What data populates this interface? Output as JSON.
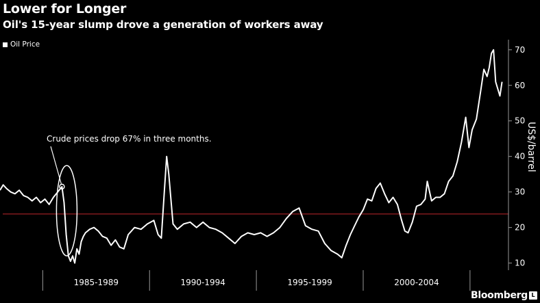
{
  "header": {
    "title": "Lower for Longer",
    "subtitle": "Oil's 15-year slump drove a generation of workers away"
  },
  "legend": {
    "label": "Oil Price"
  },
  "brand": {
    "name": "Bloomberg",
    "badge": "L"
  },
  "colors": {
    "background": "#000000",
    "line": "#ffffff",
    "reference": "#c0272d",
    "axis": "#999999"
  },
  "chart_data": {
    "type": "line",
    "title": "Lower for Longer",
    "subtitle": "Oil's 15-year slump drove a generation of workers away",
    "ylabel": "US$/barrel",
    "xlabel": "",
    "x_tick_labels": [
      "1985-1989",
      "1990-1994",
      "1995-1999",
      "2000-2004"
    ],
    "xlim": [
      1983.0,
      2006.8
    ],
    "ylim": [
      8,
      74
    ],
    "y_ticks": [
      10,
      20,
      30,
      40,
      50,
      60,
      70
    ],
    "y_axis_side": "right",
    "reference_line": 23.8,
    "grid": false,
    "legend_position": "top-left",
    "annotation": {
      "text": "Crude prices drop 67% in three months.",
      "x": 1985.9,
      "y": 31.5
    },
    "series": [
      {
        "name": "Oil Price",
        "x": [
          1983.0,
          1983.15,
          1983.3,
          1983.5,
          1983.7,
          1983.9,
          1984.1,
          1984.3,
          1984.5,
          1984.7,
          1984.9,
          1985.1,
          1985.3,
          1985.5,
          1985.7,
          1985.9,
          1986.0,
          1986.1,
          1986.2,
          1986.3,
          1986.4,
          1986.5,
          1986.6,
          1986.7,
          1986.8,
          1986.9,
          1987.0,
          1987.2,
          1987.4,
          1987.6,
          1987.8,
          1988.0,
          1988.2,
          1988.4,
          1988.6,
          1988.8,
          1989.0,
          1989.3,
          1989.6,
          1989.9,
          1990.2,
          1990.4,
          1990.55,
          1990.7,
          1990.8,
          1990.9,
          1991.0,
          1991.1,
          1991.3,
          1991.6,
          1991.9,
          1992.2,
          1992.5,
          1992.8,
          1993.1,
          1993.4,
          1993.7,
          1994.0,
          1994.3,
          1994.6,
          1994.9,
          1995.2,
          1995.5,
          1995.8,
          1996.1,
          1996.4,
          1996.7,
          1997.0,
          1997.3,
          1997.6,
          1997.9,
          1998.2,
          1998.5,
          1998.8,
          1999.0,
          1999.2,
          1999.4,
          1999.6,
          1999.8,
          2000.0,
          2000.2,
          2000.4,
          2000.6,
          2000.8,
          2001.0,
          2001.2,
          2001.4,
          2001.6,
          2001.8,
          2001.95,
          2002.1,
          2002.3,
          2002.5,
          2002.7,
          2002.9,
          2003.0,
          2003.2,
          2003.4,
          2003.6,
          2003.8,
          2004.0,
          2004.2,
          2004.4,
          2004.6,
          2004.8,
          2004.95,
          2005.1,
          2005.3,
          2005.5,
          2005.65,
          2005.8,
          2005.9,
          2006.0,
          2006.1,
          2006.2,
          2006.3,
          2006.4,
          2006.5
        ],
        "values": [
          30.5,
          32.0,
          31.0,
          30.0,
          29.5,
          30.5,
          29.0,
          28.5,
          27.5,
          28.5,
          27.0,
          28.0,
          26.5,
          28.5,
          30.0,
          31.5,
          27.0,
          18.0,
          12.0,
          10.5,
          12.0,
          10.0,
          14.0,
          12.5,
          16.0,
          17.5,
          18.5,
          19.5,
          20.0,
          19.0,
          17.5,
          17.0,
          15.0,
          16.5,
          14.5,
          14.0,
          18.0,
          20.0,
          19.5,
          21.0,
          22.0,
          18.0,
          17.0,
          31.0,
          40.0,
          35.0,
          28.0,
          21.0,
          19.5,
          21.0,
          21.5,
          20.0,
          21.5,
          20.0,
          19.5,
          18.5,
          17.0,
          15.5,
          17.5,
          18.5,
          18.0,
          18.5,
          17.5,
          18.5,
          20.0,
          22.5,
          24.5,
          25.5,
          20.5,
          19.5,
          19.0,
          15.5,
          13.5,
          12.5,
          11.5,
          15.0,
          18.0,
          20.5,
          23.0,
          25.0,
          28.0,
          27.5,
          31.0,
          32.5,
          29.5,
          27.0,
          28.5,
          26.5,
          22.0,
          19.0,
          18.5,
          21.5,
          26.0,
          26.5,
          28.0,
          33.0,
          27.5,
          28.5,
          28.5,
          29.5,
          33.0,
          34.5,
          38.5,
          44.0,
          51.0,
          42.5,
          47.5,
          50.5,
          58.5,
          64.5,
          62.5,
          65.0,
          69.0,
          70.0,
          61.0,
          59.0,
          57.0,
          61.0
        ]
      }
    ]
  }
}
